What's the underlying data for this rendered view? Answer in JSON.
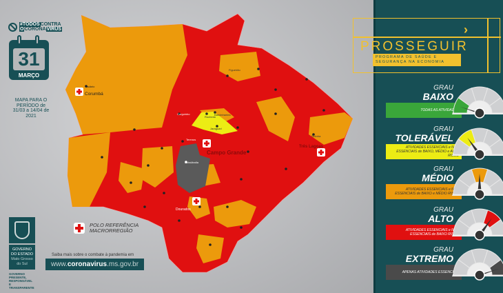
{
  "campaign": {
    "hashtag_line1_a": "#TODOS",
    "hashtag_line1_b": "CONTRA",
    "hashtag_line2_a": "O",
    "hashtag_line2_b": "CORONA",
    "hashtag_line2_c": "VIRUS"
  },
  "calendar": {
    "day": "31",
    "month": "MARÇO"
  },
  "period": "MAPA PARA O PERÍODO de 31/03 a 14/04 de 2021",
  "government": {
    "line1": "GOVERNO",
    "line2": "DO ESTADO",
    "line3": "Mato Grosso do Sul",
    "slogan": "GOVERNO PRESENTE, RESPONSÁVEL E TRANSPARENTE"
  },
  "legend": {
    "polo": "POLO REFERÊNCIA MACRORREGIÃO"
  },
  "footer": {
    "saiba": "Saiba mais sobre o combate à pandemia em",
    "url_a": "www.",
    "url_b": "coronavirus",
    ".url_c": "",
    "url_c": ".ms.gov.br"
  },
  "program": {
    "name": "PROSSEGUIR",
    "subtitle": "PROGRAMA DE SAÚDE E SEGURANÇA NA ECONOMIA"
  },
  "levels": [
    {
      "grau": "GRAU",
      "name": "BAIXO",
      "desc": "TODAS AS ATIVIDADES",
      "color": "#3aa63a",
      "text": "#fff",
      "index": 0
    },
    {
      "grau": "GRAU",
      "name": "TOLERÁVEL",
      "desc": "ATIVIDADES ESSENCIAIS e NÃO ESSENCIAIS de BAIXO, MÉDIO e ALTO RISCO",
      "color": "#ecec14",
      "text": "#333",
      "index": 1
    },
    {
      "grau": "GRAU",
      "name": "MÉDIO",
      "desc": "ATIVIDADES ESSENCIAIS e NÃO ESSENCIAIS de BAIXO e MÉDIO RISCO",
      "color": "#ec9a0c",
      "text": "#333",
      "index": 2
    },
    {
      "grau": "GRAU",
      "name": "ALTO",
      "desc": "ATIVIDADES ESSENCIAIS e NÃO ESSENCIAIS de BAIXO RISCO",
      "color": "#e01010",
      "text": "#fff",
      "index": 3
    },
    {
      "grau": "GRAU",
      "name": "EXTREMO",
      "desc": "APENAS ATIVIDADES ESSENCIAIS",
      "color": "#4a4a4a",
      "text": "#fff",
      "index": 4
    }
  ],
  "map": {
    "colors": {
      "alto": "#e01010",
      "medio": "#ec9a0c",
      "toleravel": "#ecec14",
      "extremo": "#5a5a5a"
    },
    "poles": [
      "Corumbá",
      "Campo Grande",
      "Três Lagoas",
      "Dourados"
    ],
    "cities": [
      "Ladário",
      "Sidrolândia",
      "Rochedo",
      "Jaraguari",
      "Bandeirantes",
      "Corguinho",
      "Terenos",
      "Selvíria",
      "Figueirão"
    ]
  }
}
